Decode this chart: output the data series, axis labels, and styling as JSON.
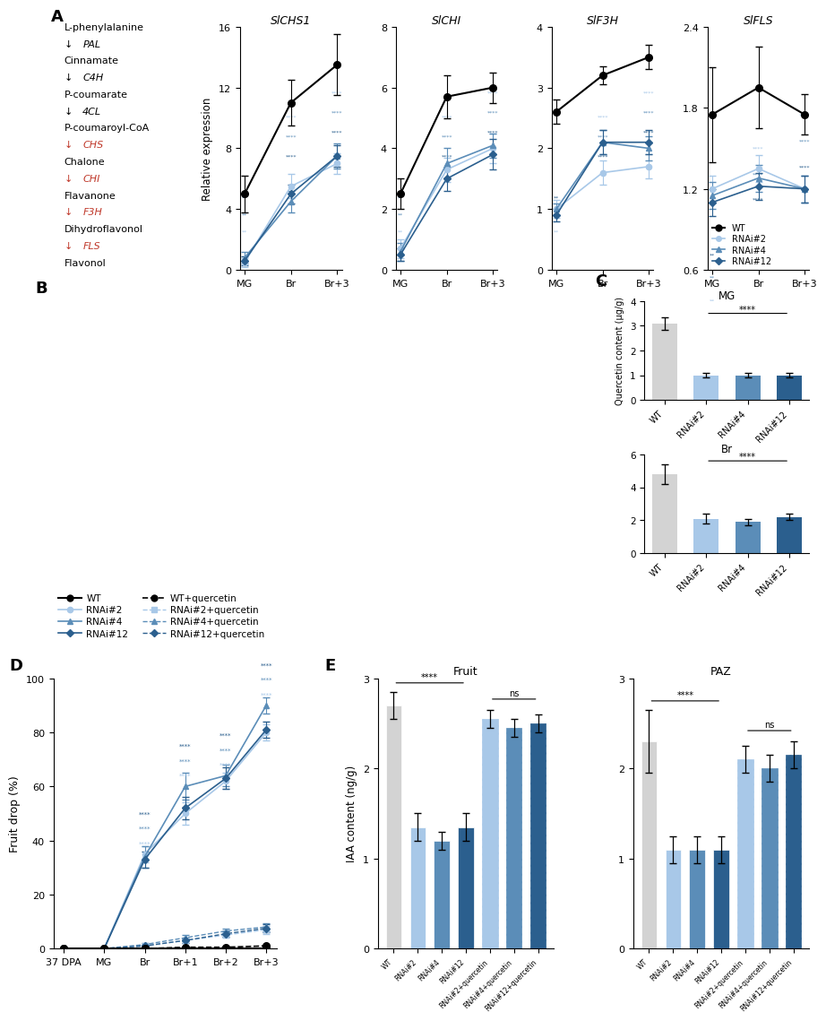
{
  "WT_color": "#000000",
  "RNAi2_color": "#a8c8e8",
  "RNAi4_color": "#5b8db8",
  "RNAi12_color": "#2b5f8e",
  "gene_titles": [
    "SlCHS1",
    "SlCHI",
    "SlF3H",
    "SlFLS"
  ],
  "xticklabels_gene": [
    "MG",
    "Br",
    "Br+3"
  ],
  "SlCHS1": {
    "WT": [
      5.0,
      11.0,
      13.5
    ],
    "WT_err": [
      1.2,
      1.5,
      2.0
    ],
    "RNAi2": [
      0.5,
      5.5,
      7.0
    ],
    "RNAi2_err": [
      0.3,
      0.8,
      0.7
    ],
    "RNAi4": [
      0.8,
      4.5,
      7.5
    ],
    "RNAi4_err": [
      0.4,
      0.7,
      0.8
    ],
    "RNAi12": [
      0.6,
      5.0,
      7.5
    ],
    "RNAi12_err": [
      0.3,
      0.6,
      0.7
    ],
    "ylim": [
      0,
      16
    ],
    "yticks": [
      0,
      4,
      8,
      12,
      16
    ]
  },
  "SlCHI": {
    "WT": [
      2.5,
      5.7,
      6.0
    ],
    "WT_err": [
      0.5,
      0.7,
      0.5
    ],
    "RNAi2": [
      0.7,
      3.3,
      4.0
    ],
    "RNAi2_err": [
      0.3,
      0.4,
      0.5
    ],
    "RNAi4": [
      0.6,
      3.5,
      4.1
    ],
    "RNAi4_err": [
      0.3,
      0.5,
      0.4
    ],
    "RNAi12": [
      0.5,
      3.0,
      3.8
    ],
    "RNAi12_err": [
      0.2,
      0.4,
      0.5
    ],
    "ylim": [
      0,
      8
    ],
    "yticks": [
      0,
      2,
      4,
      6,
      8
    ]
  },
  "SlF3H": {
    "WT": [
      2.6,
      3.2,
      3.5
    ],
    "WT_err": [
      0.2,
      0.15,
      0.2
    ],
    "RNAi2": [
      1.0,
      1.6,
      1.7
    ],
    "RNAi2_err": [
      0.15,
      0.2,
      0.2
    ],
    "RNAi4": [
      1.0,
      2.1,
      2.0
    ],
    "RNAi4_err": [
      0.1,
      0.2,
      0.2
    ],
    "RNAi12": [
      0.9,
      2.1,
      2.1
    ],
    "RNAi12_err": [
      0.1,
      0.2,
      0.2
    ],
    "ylim": [
      0,
      4
    ],
    "yticks": [
      0,
      1,
      2,
      3,
      4
    ]
  },
  "SlFLS": {
    "WT": [
      1.75,
      1.95,
      1.75
    ],
    "WT_err": [
      0.35,
      0.3,
      0.15
    ],
    "RNAi2": [
      1.2,
      1.35,
      1.2
    ],
    "RNAi2_err": [
      0.1,
      0.1,
      0.1
    ],
    "RNAi4": [
      1.15,
      1.28,
      1.2
    ],
    "RNAi4_err": [
      0.1,
      0.1,
      0.1
    ],
    "RNAi12": [
      1.1,
      1.22,
      1.2
    ],
    "RNAi12_err": [
      0.1,
      0.1,
      0.1
    ],
    "ylim": [
      0.6,
      2.4
    ],
    "yticks": [
      0.6,
      1.2,
      1.8,
      2.4
    ]
  },
  "panel_C_MG": {
    "categories": [
      "WT",
      "RNAi#2",
      "RNAi#4",
      "RNAi#12"
    ],
    "values": [
      3.1,
      1.0,
      1.0,
      1.0
    ],
    "errors": [
      0.25,
      0.1,
      0.1,
      0.1
    ],
    "colors": [
      "#d3d3d3",
      "#a8c8e8",
      "#5b8db8",
      "#2b5f8e"
    ],
    "ylim": [
      0,
      4
    ],
    "yticks": [
      0,
      1,
      2,
      3,
      4
    ],
    "title": "MG"
  },
  "panel_C_Br": {
    "categories": [
      "WT",
      "RNAi#2",
      "RNAi#4",
      "RNAi#12"
    ],
    "values": [
      4.8,
      2.1,
      1.9,
      2.2
    ],
    "errors": [
      0.6,
      0.3,
      0.2,
      0.2
    ],
    "colors": [
      "#d3d3d3",
      "#a8c8e8",
      "#5b8db8",
      "#2b5f8e"
    ],
    "ylim": [
      0,
      6
    ],
    "yticks": [
      0,
      2,
      4,
      6
    ],
    "title": "Br"
  },
  "panel_D": {
    "xticklabels": [
      "37 DPA",
      "MG",
      "Br",
      "Br+1",
      "Br+2",
      "Br+3"
    ],
    "WT": [
      0,
      0,
      0,
      0,
      0,
      0
    ],
    "WT_err": [
      0.0,
      0.0,
      0.0,
      0.0,
      0.0,
      0.0
    ],
    "WT_q": [
      0,
      0,
      0,
      0.5,
      0.5,
      1.0
    ],
    "WT_q_err": [
      0.0,
      0.0,
      0.0,
      0.1,
      0.1,
      0.2
    ],
    "RNAi2": [
      0,
      0,
      35,
      50,
      62,
      80
    ],
    "RNAi2_err": [
      0,
      0,
      3,
      4,
      3,
      3
    ],
    "RNAi2_q": [
      0,
      0,
      1,
      3,
      5,
      7
    ],
    "RNAi2_q_err": [
      0,
      0,
      0.5,
      0.8,
      1.0,
      1.5
    ],
    "RNAi4": [
      0,
      0,
      34,
      60,
      64,
      90
    ],
    "RNAi4_err": [
      0,
      0,
      4,
      5,
      4,
      3
    ],
    "RNAi4_q": [
      0,
      0,
      1.5,
      4,
      6.5,
      8
    ],
    "RNAi4_q_err": [
      0,
      0,
      0.5,
      1.0,
      1.0,
      1.5
    ],
    "RNAi12": [
      0,
      0,
      33,
      52,
      63,
      81
    ],
    "RNAi12_err": [
      0,
      0,
      3,
      4,
      4,
      3
    ],
    "RNAi12_q": [
      0,
      0,
      1,
      3,
      5.5,
      7.5
    ],
    "RNAi12_q_err": [
      0,
      0,
      0.5,
      0.8,
      1.0,
      1.5
    ],
    "ylim": [
      0,
      100
    ],
    "yticks": [
      0,
      20,
      40,
      60,
      80,
      100
    ]
  },
  "panel_E_Fruit": {
    "categories": [
      "WT",
      "RNAi#2",
      "RNAi#4",
      "RNAi#12",
      "RNAi#2+quercetin",
      "RNAi#4+quercetin",
      "RNAi#12+quercetin"
    ],
    "values": [
      2.7,
      1.35,
      1.2,
      1.35,
      2.55,
      2.45,
      2.5
    ],
    "errors": [
      0.15,
      0.15,
      0.1,
      0.15,
      0.1,
      0.1,
      0.1
    ],
    "colors": [
      "#d3d3d3",
      "#a8c8e8",
      "#5b8db8",
      "#2b5f8e",
      "#a8c8e8",
      "#5b8db8",
      "#2b5f8e"
    ],
    "hatch": [
      null,
      null,
      null,
      null,
      "////",
      "////",
      "////"
    ],
    "ylim": [
      0,
      3
    ],
    "yticks": [
      0,
      1,
      2,
      3
    ],
    "title": "Fruit",
    "ylabel": "IAA content (ng/g)"
  },
  "panel_E_PAZ": {
    "categories": [
      "WT",
      "RNAi#2",
      "RNAi#4",
      "RNAi#12",
      "RNAi#2+quercetin",
      "RNAi#4+quercetin",
      "RNAi#12+quercetin"
    ],
    "values": [
      2.3,
      1.1,
      1.1,
      1.1,
      2.1,
      2.0,
      2.15
    ],
    "errors": [
      0.35,
      0.15,
      0.15,
      0.15,
      0.15,
      0.15,
      0.15
    ],
    "colors": [
      "#d3d3d3",
      "#a8c8e8",
      "#5b8db8",
      "#2b5f8e",
      "#a8c8e8",
      "#5b8db8",
      "#2b5f8e"
    ],
    "hatch": [
      null,
      null,
      null,
      null,
      "////",
      "////",
      "////"
    ],
    "ylim": [
      0,
      3
    ],
    "yticks": [
      0,
      1,
      2,
      3
    ],
    "title": "PAZ",
    "ylabel": ""
  },
  "pathway": [
    {
      "text": "L-phenylalanine",
      "italic": false,
      "red": false
    },
    {
      "text": "↓ PAL",
      "italic": true,
      "red": false
    },
    {
      "text": "Cinnamate",
      "italic": false,
      "red": false
    },
    {
      "text": "↓ C4H",
      "italic": true,
      "red": false
    },
    {
      "text": "P-coumarate",
      "italic": false,
      "red": false
    },
    {
      "text": "↓ 4CL",
      "italic": true,
      "red": false
    },
    {
      "text": "P-coumaroyl-CoA",
      "italic": false,
      "red": false
    },
    {
      "text": "↓ CHS",
      "italic": true,
      "red": true
    },
    {
      "text": "Chalone",
      "italic": false,
      "red": false
    },
    {
      "text": "↓ CHI",
      "italic": true,
      "red": true
    },
    {
      "text": "Flavanone",
      "italic": false,
      "red": false
    },
    {
      "text": "↓ F3H",
      "italic": true,
      "red": true
    },
    {
      "text": "Dihydroflavonol",
      "italic": false,
      "red": false
    },
    {
      "text": "↓ FLS",
      "italic": true,
      "red": true
    },
    {
      "text": "Flavonol",
      "italic": false,
      "red": false
    }
  ]
}
